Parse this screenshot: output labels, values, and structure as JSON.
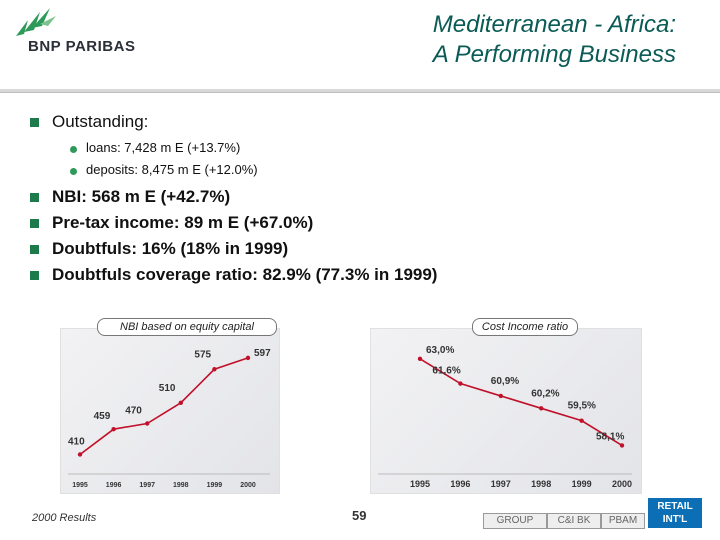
{
  "header": {
    "brand": "BNP PARIBAS",
    "title_line1": "Mediterranean - Africa:",
    "title_line2": "A Performing Business"
  },
  "bullets": {
    "outstanding": "Outstanding:",
    "sub": [
      "loans: 7,428 m E (+13.7%)",
      "deposits: 8,475 m E (+12.0%)"
    ],
    "main": [
      "NBI: 568 m E (+42.7%)",
      "Pre-tax income: 89 m E (+67.0%)",
      "Doubtfuls: 16% (18% in 1999)",
      "Doubtfuls coverage ratio: 82.9% (77.3% in 1999)"
    ]
  },
  "chart_data": [
    {
      "type": "line",
      "title": "NBI based on equity capital",
      "x": [
        "1995",
        "1996",
        "1997",
        "1998",
        "1999",
        "2000"
      ],
      "values": [
        410,
        459,
        470,
        510,
        575,
        597
      ],
      "labels": [
        "410",
        "459",
        "470",
        "510",
        "575",
        "597"
      ],
      "ylim": [
        380,
        620
      ],
      "color": "#c0102a"
    },
    {
      "type": "line",
      "title": "Cost Income ratio",
      "x": [
        "1995",
        "1996",
        "1997",
        "1998",
        "1999",
        "2000"
      ],
      "values": [
        63.0,
        61.6,
        60.9,
        60.2,
        59.5,
        58.1
      ],
      "labels": [
        "63,0%",
        "61,6%",
        "60,9%",
        "60,2%",
        "59,5%",
        "58,1%"
      ],
      "ylim": [
        57.5,
        63.5
      ],
      "color": "#c0102a"
    }
  ],
  "footer": {
    "left": "2000 Results",
    "page": "59",
    "nav": [
      "GROUP",
      "C&I BK",
      "PBAM"
    ],
    "retail_line1": "RETAIL",
    "retail_line2": "INT'L"
  }
}
